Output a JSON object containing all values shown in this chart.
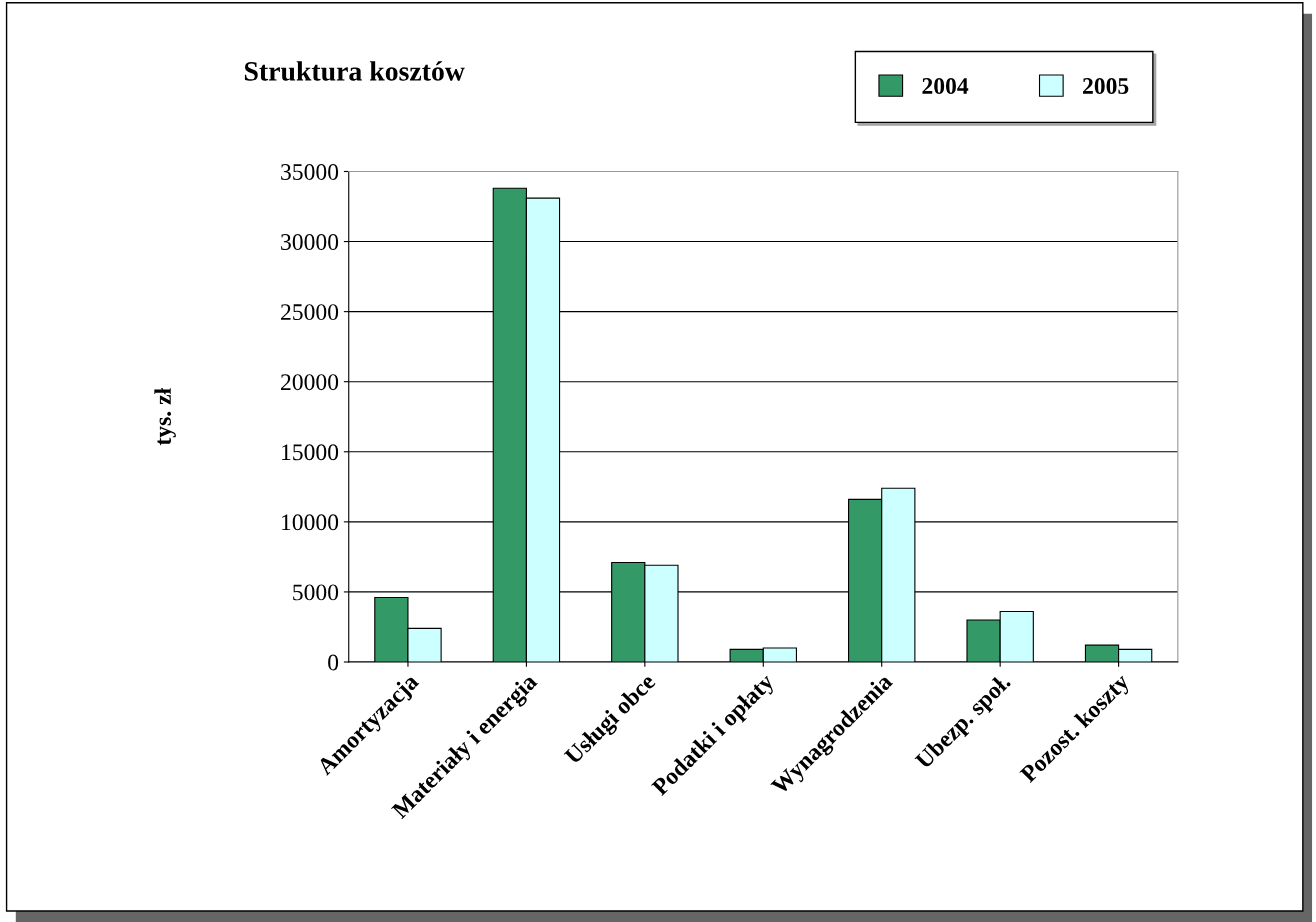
{
  "chart_data": {
    "type": "bar",
    "title": "Struktura kosztów",
    "ylabel": "tys. zł",
    "categories": [
      "Amortyzacja",
      "Materiały i energia",
      "Usługi obce",
      "Podatki i opłaty",
      "Wynagrodzenia",
      "Ubezp. społ.",
      "Pozost. koszty"
    ],
    "series": [
      {
        "name": "2004",
        "color": "#339966",
        "values": [
          4600,
          33800,
          7100,
          900,
          11600,
          3000,
          1200
        ]
      },
      {
        "name": "2005",
        "color": "#ccffff",
        "values": [
          2400,
          33100,
          6900,
          1000,
          12400,
          3600,
          900
        ]
      }
    ],
    "ylim": [
      0,
      35000
    ],
    "yticks": [
      0,
      5000,
      10000,
      15000,
      20000,
      25000,
      30000,
      35000
    ],
    "grid": "y",
    "legend": "top right"
  }
}
